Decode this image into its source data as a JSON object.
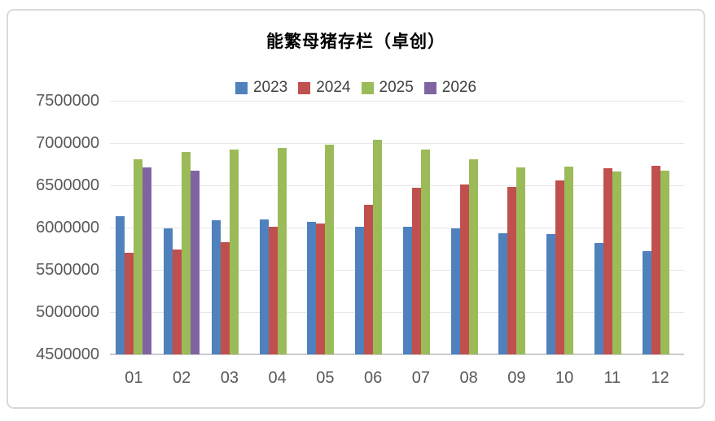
{
  "chart_data": {
    "type": "bar",
    "title": "能繁母猪存栏（卓创）",
    "xlabel": "",
    "ylabel": "",
    "categories": [
      "01",
      "02",
      "03",
      "04",
      "05",
      "06",
      "07",
      "08",
      "09",
      "10",
      "11",
      "12"
    ],
    "series": [
      {
        "name": "2023",
        "color": "#4F81BD",
        "values": [
          6130000,
          5990000,
          6090000,
          6100000,
          6070000,
          6010000,
          6010000,
          5990000,
          5930000,
          5920000,
          5820000,
          5720000
        ]
      },
      {
        "name": "2024",
        "color": "#C0504D",
        "values": [
          5700000,
          5740000,
          5830000,
          6010000,
          6050000,
          6270000,
          6470000,
          6510000,
          6480000,
          6560000,
          6700000,
          6730000
        ]
      },
      {
        "name": "2025",
        "color": "#9BBB59",
        "values": [
          6810000,
          6890000,
          6920000,
          6940000,
          6980000,
          7040000,
          6920000,
          6810000,
          6710000,
          6720000,
          6660000,
          6670000
        ]
      },
      {
        "name": "2026",
        "color": "#8064A2",
        "values": [
          6710000,
          6670000,
          null,
          null,
          null,
          null,
          null,
          null,
          null,
          null,
          null,
          null
        ]
      }
    ],
    "ylim": [
      4500000,
      7500000
    ],
    "ytick_step": 500000,
    "ytick_labels": [
      "4500000",
      "5000000",
      "5500000",
      "6000000",
      "6500000",
      "7000000",
      "7500000"
    ],
    "grid": true,
    "legend_position": "top",
    "colors": {
      "gridline": "#E7E7E7",
      "axis_line": "#CDCBCB",
      "axis_text": "#595959",
      "legend_text": "#404040",
      "frame_border": "#D9D9D9",
      "background": "#FFFFFF"
    }
  }
}
